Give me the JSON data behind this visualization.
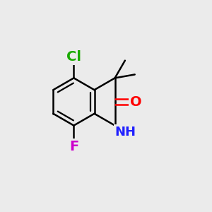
{
  "bg_color": "#ebebeb",
  "atom_colors": {
    "C": "#000000",
    "Cl": "#1aaa00",
    "F": "#cc00cc",
    "O": "#ff0000",
    "N": "#2020ff",
    "H": "#2020ff"
  },
  "bond_color": "#000000",
  "bond_width": 1.8,
  "font_size_atoms": 14,
  "font_size_nh": 13
}
